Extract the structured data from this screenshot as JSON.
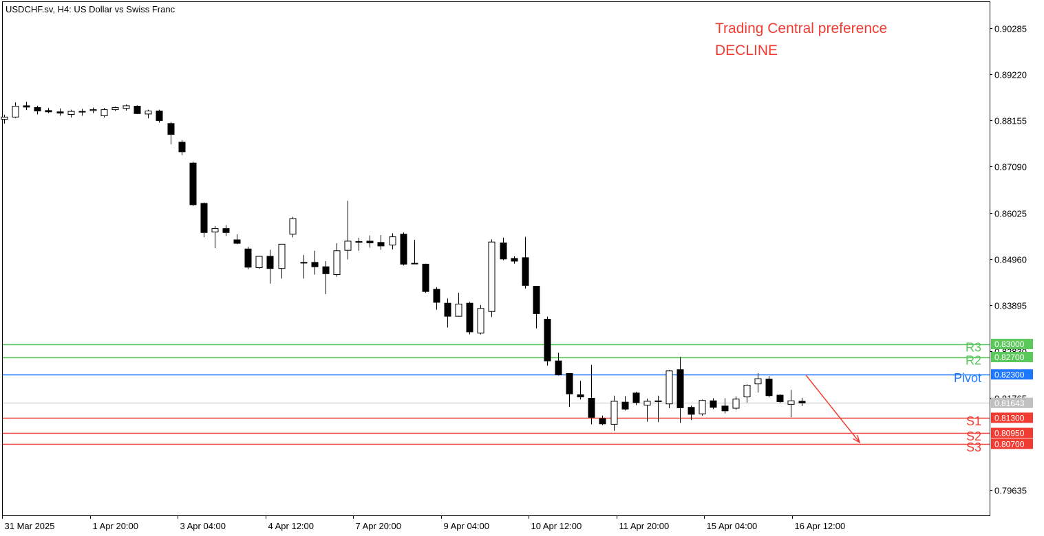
{
  "chart_data": {
    "type": "candlestick",
    "title": "USDCHF.sv, H4:  US Dollar vs Swiss Franc",
    "annotation": [
      "Trading Central preference",
      "DECLINE"
    ],
    "ylim": [
      0.7905,
      0.9088
    ],
    "y_ticks": [
      "0.90285",
      "0.89220",
      "0.88155",
      "0.87090",
      "0.86025",
      "0.84960",
      "0.83895",
      "0.82830",
      "0.81765",
      "0.79635"
    ],
    "x_tick_labels": [
      "31 Mar 2025",
      "1 Apr 20:00",
      "3 Apr 04:00",
      "4 Apr 12:00",
      "7 Apr 20:00",
      "9 Apr 04:00",
      "10 Apr 12:00",
      "11 Apr 20:00",
      "15 Apr 04:00",
      "16 Apr 12:00"
    ],
    "current_price": {
      "value": 0.81643,
      "label": "0.81643"
    },
    "levels": [
      {
        "name": "R3",
        "value": 0.83,
        "label": "0.83000",
        "color": "#5ac85a"
      },
      {
        "name": "R2",
        "value": 0.827,
        "label": "0.82700",
        "color": "#5ac85a"
      },
      {
        "name": "Pivot",
        "value": 0.823,
        "label": "0.82300",
        "color": "#1e78ff"
      },
      {
        "name": "S1",
        "value": 0.813,
        "label": "0.81300",
        "color": "#f03c32"
      },
      {
        "name": "S2",
        "value": 0.8095,
        "label": "0.80950",
        "color": "#f03c32"
      },
      {
        "name": "S3",
        "value": 0.807,
        "label": "0.80700",
        "color": "#f03c32"
      }
    ],
    "forecast_arrow": {
      "from_value": 0.823,
      "to_value": 0.807,
      "color": "#f03c32"
    },
    "candles": [
      {
        "o": 0.8818,
        "h": 0.8828,
        "l": 0.8808,
        "c": 0.8823
      },
      {
        "o": 0.8823,
        "h": 0.8857,
        "l": 0.8821,
        "c": 0.8848
      },
      {
        "o": 0.8849,
        "h": 0.8858,
        "l": 0.8839,
        "c": 0.8846
      },
      {
        "o": 0.8845,
        "h": 0.8849,
        "l": 0.8829,
        "c": 0.8837
      },
      {
        "o": 0.8838,
        "h": 0.8844,
        "l": 0.8832,
        "c": 0.8835
      },
      {
        "o": 0.8835,
        "h": 0.8843,
        "l": 0.8826,
        "c": 0.8832
      },
      {
        "o": 0.8829,
        "h": 0.884,
        "l": 0.8822,
        "c": 0.8836
      },
      {
        "o": 0.8835,
        "h": 0.8842,
        "l": 0.8826,
        "c": 0.8836
      },
      {
        "o": 0.8838,
        "h": 0.8845,
        "l": 0.8832,
        "c": 0.884
      },
      {
        "o": 0.8826,
        "h": 0.8844,
        "l": 0.8822,
        "c": 0.884
      },
      {
        "o": 0.884,
        "h": 0.8847,
        "l": 0.8837,
        "c": 0.8845
      },
      {
        "o": 0.8843,
        "h": 0.8852,
        "l": 0.8838,
        "c": 0.8849
      },
      {
        "o": 0.8848,
        "h": 0.885,
        "l": 0.883,
        "c": 0.8831
      },
      {
        "o": 0.883,
        "h": 0.884,
        "l": 0.882,
        "c": 0.8837
      },
      {
        "o": 0.8837,
        "h": 0.884,
        "l": 0.881,
        "c": 0.8815
      },
      {
        "o": 0.8808,
        "h": 0.8812,
        "l": 0.876,
        "c": 0.8783
      },
      {
        "o": 0.8765,
        "h": 0.877,
        "l": 0.8735,
        "c": 0.8743
      },
      {
        "o": 0.8717,
        "h": 0.872,
        "l": 0.8618,
        "c": 0.8621
      },
      {
        "o": 0.8624,
        "h": 0.8626,
        "l": 0.8546,
        "c": 0.8557
      },
      {
        "o": 0.8558,
        "h": 0.8572,
        "l": 0.8521,
        "c": 0.8566
      },
      {
        "o": 0.8566,
        "h": 0.8574,
        "l": 0.8549,
        "c": 0.8557
      },
      {
        "o": 0.854,
        "h": 0.8553,
        "l": 0.853,
        "c": 0.8532
      },
      {
        "o": 0.8519,
        "h": 0.8524,
        "l": 0.8472,
        "c": 0.8477
      },
      {
        "o": 0.8476,
        "h": 0.8503,
        "l": 0.8473,
        "c": 0.8502
      },
      {
        "o": 0.8502,
        "h": 0.8517,
        "l": 0.8439,
        "c": 0.8474
      },
      {
        "o": 0.8474,
        "h": 0.8528,
        "l": 0.8451,
        "c": 0.853
      },
      {
        "o": 0.8553,
        "h": 0.8593,
        "l": 0.8546,
        "c": 0.8589
      },
      {
        "o": 0.8488,
        "h": 0.8505,
        "l": 0.8451,
        "c": 0.8488
      },
      {
        "o": 0.8488,
        "h": 0.8515,
        "l": 0.846,
        "c": 0.8478
      },
      {
        "o": 0.8478,
        "h": 0.8491,
        "l": 0.8415,
        "c": 0.8462
      },
      {
        "o": 0.846,
        "h": 0.8532,
        "l": 0.8455,
        "c": 0.8515
      },
      {
        "o": 0.8516,
        "h": 0.863,
        "l": 0.8495,
        "c": 0.8537
      },
      {
        "o": 0.8536,
        "h": 0.8545,
        "l": 0.8515,
        "c": 0.8536
      },
      {
        "o": 0.8537,
        "h": 0.855,
        "l": 0.8522,
        "c": 0.8533
      },
      {
        "o": 0.8534,
        "h": 0.8551,
        "l": 0.8517,
        "c": 0.8526
      },
      {
        "o": 0.8528,
        "h": 0.8555,
        "l": 0.8518,
        "c": 0.8547
      },
      {
        "o": 0.8553,
        "h": 0.8557,
        "l": 0.8481,
        "c": 0.8484
      },
      {
        "o": 0.8486,
        "h": 0.854,
        "l": 0.8484,
        "c": 0.8485
      },
      {
        "o": 0.8484,
        "h": 0.8485,
        "l": 0.8418,
        "c": 0.8421
      },
      {
        "o": 0.8426,
        "h": 0.8431,
        "l": 0.8379,
        "c": 0.8396
      },
      {
        "o": 0.8394,
        "h": 0.8405,
        "l": 0.8338,
        "c": 0.8364
      },
      {
        "o": 0.8364,
        "h": 0.8418,
        "l": 0.8363,
        "c": 0.8392
      },
      {
        "o": 0.8394,
        "h": 0.8397,
        "l": 0.8322,
        "c": 0.8328
      },
      {
        "o": 0.8325,
        "h": 0.839,
        "l": 0.8322,
        "c": 0.8382
      },
      {
        "o": 0.8375,
        "h": 0.8541,
        "l": 0.8362,
        "c": 0.8535
      },
      {
        "o": 0.8533,
        "h": 0.8545,
        "l": 0.8493,
        "c": 0.8496
      },
      {
        "o": 0.8497,
        "h": 0.8502,
        "l": 0.8485,
        "c": 0.8491
      },
      {
        "o": 0.8499,
        "h": 0.8547,
        "l": 0.8428,
        "c": 0.8435
      },
      {
        "o": 0.8433,
        "h": 0.8433,
        "l": 0.8336,
        "c": 0.837
      },
      {
        "o": 0.8357,
        "h": 0.8363,
        "l": 0.825,
        "c": 0.8261
      },
      {
        "o": 0.8261,
        "h": 0.828,
        "l": 0.8227,
        "c": 0.8229
      },
      {
        "o": 0.8232,
        "h": 0.8233,
        "l": 0.8155,
        "c": 0.8185
      },
      {
        "o": 0.8183,
        "h": 0.8215,
        "l": 0.8172,
        "c": 0.8178
      },
      {
        "o": 0.8175,
        "h": 0.8252,
        "l": 0.8115,
        "c": 0.8131
      },
      {
        "o": 0.8128,
        "h": 0.8135,
        "l": 0.8113,
        "c": 0.8116
      },
      {
        "o": 0.8115,
        "h": 0.8181,
        "l": 0.81,
        "c": 0.8168
      },
      {
        "o": 0.8166,
        "h": 0.818,
        "l": 0.8147,
        "c": 0.815
      },
      {
        "o": 0.8187,
        "h": 0.819,
        "l": 0.8159,
        "c": 0.8165
      },
      {
        "o": 0.8159,
        "h": 0.8174,
        "l": 0.8121,
        "c": 0.8168
      },
      {
        "o": 0.8167,
        "h": 0.8181,
        "l": 0.812,
        "c": 0.8169
      },
      {
        "o": 0.8162,
        "h": 0.824,
        "l": 0.8152,
        "c": 0.8238
      },
      {
        "o": 0.8241,
        "h": 0.827,
        "l": 0.8118,
        "c": 0.8153
      },
      {
        "o": 0.8154,
        "h": 0.8158,
        "l": 0.8125,
        "c": 0.8138
      },
      {
        "o": 0.8139,
        "h": 0.8172,
        "l": 0.8135,
        "c": 0.817
      },
      {
        "o": 0.8169,
        "h": 0.8175,
        "l": 0.815,
        "c": 0.8154
      },
      {
        "o": 0.8157,
        "h": 0.8175,
        "l": 0.814,
        "c": 0.8146
      },
      {
        "o": 0.8152,
        "h": 0.8179,
        "l": 0.8148,
        "c": 0.8173
      },
      {
        "o": 0.8178,
        "h": 0.8207,
        "l": 0.8165,
        "c": 0.8205
      },
      {
        "o": 0.8208,
        "h": 0.8233,
        "l": 0.8188,
        "c": 0.822
      },
      {
        "o": 0.8219,
        "h": 0.8226,
        "l": 0.8177,
        "c": 0.8181
      },
      {
        "o": 0.8182,
        "h": 0.8184,
        "l": 0.8164,
        "c": 0.8167
      },
      {
        "o": 0.8161,
        "h": 0.8194,
        "l": 0.8131,
        "c": 0.8169
      },
      {
        "o": 0.8168,
        "h": 0.8176,
        "l": 0.8157,
        "c": 0.8164
      }
    ]
  }
}
